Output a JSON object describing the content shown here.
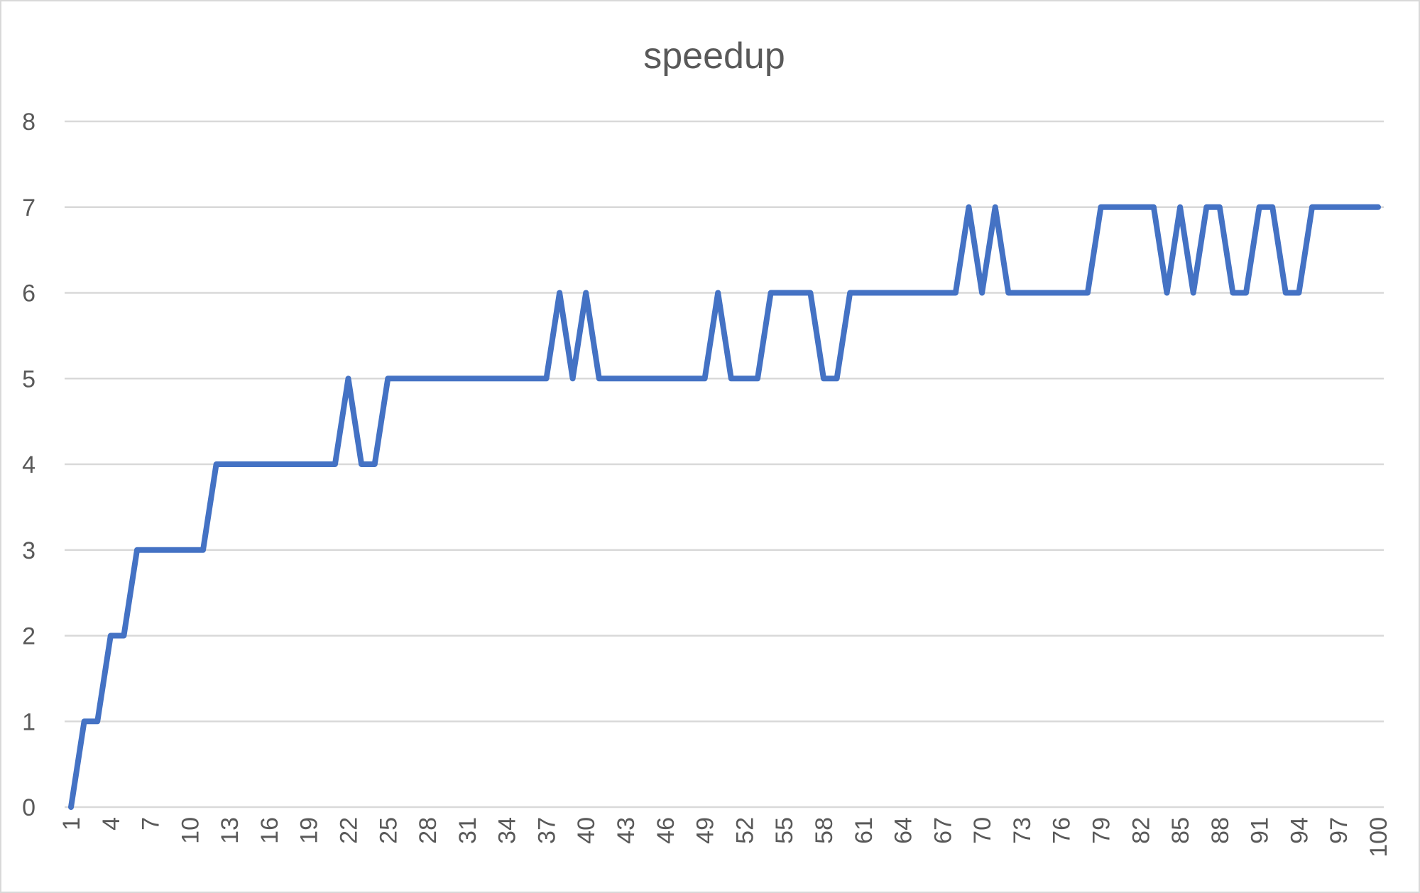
{
  "chart_data": {
    "type": "line",
    "title": "speedup",
    "xlabel": "",
    "ylabel": "",
    "ylim": [
      0,
      8
    ],
    "yticks": [
      0,
      1,
      2,
      3,
      4,
      5,
      6,
      7,
      8
    ],
    "xticks": [
      1,
      4,
      7,
      10,
      13,
      16,
      19,
      22,
      25,
      28,
      31,
      34,
      37,
      40,
      43,
      46,
      49,
      52,
      55,
      58,
      61,
      64,
      67,
      70,
      73,
      76,
      79,
      82,
      85,
      88,
      91,
      94,
      97,
      100
    ],
    "grid": true,
    "legend": "none",
    "x": [
      1,
      2,
      3,
      4,
      5,
      6,
      7,
      8,
      9,
      10,
      11,
      12,
      13,
      14,
      15,
      16,
      17,
      18,
      19,
      20,
      21,
      22,
      23,
      24,
      25,
      26,
      27,
      28,
      29,
      30,
      31,
      32,
      33,
      34,
      35,
      36,
      37,
      38,
      39,
      40,
      41,
      42,
      43,
      44,
      45,
      46,
      47,
      48,
      49,
      50,
      51,
      52,
      53,
      54,
      55,
      56,
      57,
      58,
      59,
      60,
      61,
      62,
      63,
      64,
      65,
      66,
      67,
      68,
      69,
      70,
      71,
      72,
      73,
      74,
      75,
      76,
      77,
      78,
      79,
      80,
      81,
      82,
      83,
      84,
      85,
      86,
      87,
      88,
      89,
      90,
      91,
      92,
      93,
      94,
      95,
      96,
      97,
      98,
      99,
      100
    ],
    "series": [
      {
        "color": "#4472c4",
        "values": [
          0,
          1,
          1,
          2,
          2,
          3,
          3,
          3,
          3,
          3,
          3,
          4,
          4,
          4,
          4,
          4,
          4,
          4,
          4,
          4,
          4,
          5,
          4,
          4,
          5,
          5,
          5,
          5,
          5,
          5,
          5,
          5,
          5,
          5,
          5,
          5,
          5,
          6,
          5,
          6,
          5,
          5,
          5,
          5,
          5,
          5,
          5,
          5,
          5,
          6,
          5,
          5,
          5,
          6,
          6,
          6,
          6,
          5,
          5,
          6,
          6,
          6,
          6,
          6,
          6,
          6,
          6,
          6,
          7,
          6,
          7,
          6,
          6,
          6,
          6,
          6,
          6,
          6,
          7,
          7,
          7,
          7,
          7,
          6,
          7,
          6,
          7,
          7,
          6,
          6,
          7,
          7,
          6,
          6,
          7,
          7,
          7,
          7,
          7,
          7
        ]
      }
    ]
  }
}
